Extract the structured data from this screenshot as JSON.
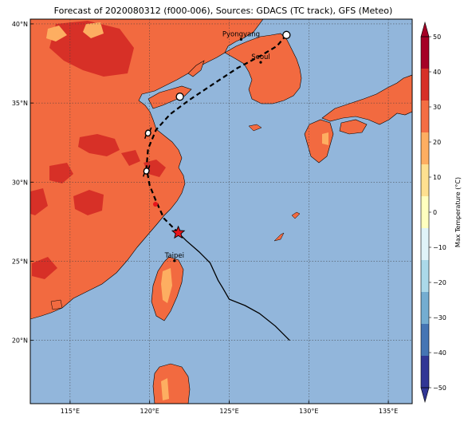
{
  "title": "Forecast of 2020080312 (f000-006), Sources: GDACS (TC track), GFS (Meteo)",
  "map": {
    "lon_range": [
      112.5,
      136.5
    ],
    "lat_range": [
      16.0,
      40.3
    ],
    "lon_ticks": [
      "115°E",
      "120°E",
      "125°E",
      "130°E",
      "135°E"
    ],
    "lat_ticks": [
      "20°N",
      "25°N",
      "30°N",
      "35°N",
      "40°N"
    ],
    "grid": true,
    "sea_color": "#92b6db",
    "land_color": "#f26a40"
  },
  "cities": [
    {
      "name": "Pyongyang",
      "lon": 125.75,
      "lat": 39.02
    },
    {
      "name": "Seoul",
      "lon": 126.98,
      "lat": 37.57
    },
    {
      "name": "Taipei",
      "lon": 121.56,
      "lat": 25.03
    }
  ],
  "track": {
    "observed": [
      [
        128.8,
        20.0
      ],
      [
        127.9,
        20.9
      ],
      [
        126.9,
        21.7
      ],
      [
        126.0,
        22.2
      ],
      [
        125.0,
        22.6
      ],
      [
        124.6,
        23.3
      ],
      [
        124.3,
        23.8
      ],
      [
        123.8,
        24.9
      ],
      [
        123.1,
        25.6
      ],
      [
        122.3,
        26.3
      ],
      [
        121.8,
        26.8
      ]
    ],
    "forecast": [
      [
        121.8,
        26.8
      ],
      [
        120.9,
        27.7
      ],
      [
        120.4,
        28.8
      ],
      [
        120.0,
        29.8
      ],
      [
        119.8,
        30.9
      ],
      [
        119.9,
        32.1
      ],
      [
        120.4,
        33.3
      ],
      [
        121.3,
        34.3
      ],
      [
        122.5,
        35.2
      ],
      [
        124.0,
        36.2
      ],
      [
        125.5,
        37.2
      ],
      [
        127.0,
        38.0
      ],
      [
        128.0,
        38.6
      ],
      [
        128.6,
        39.3
      ]
    ],
    "current_position": [
      121.8,
      26.8
    ],
    "markers": [
      {
        "type": "circle",
        "lon": 121.9,
        "lat": 35.4
      },
      {
        "type": "circle",
        "lon": 128.6,
        "lat": 39.3
      },
      {
        "type": "hurricane",
        "lon": 119.9,
        "lat": 33.1
      },
      {
        "type": "hurricane",
        "lon": 119.8,
        "lat": 30.7
      }
    ]
  },
  "colorbar": {
    "label": "Max Temperature (°C)",
    "ticks": [
      "50",
      "40",
      "30",
      "20",
      "10",
      "0",
      "−10",
      "−20",
      "−30",
      "−40",
      "−50"
    ],
    "colors": [
      "#a50026",
      "#d73027",
      "#f46d43",
      "#fdae61",
      "#fee090",
      "#ffffbf",
      "#e0f3f8",
      "#abd9e9",
      "#74add1",
      "#4575b4",
      "#313695"
    ]
  }
}
